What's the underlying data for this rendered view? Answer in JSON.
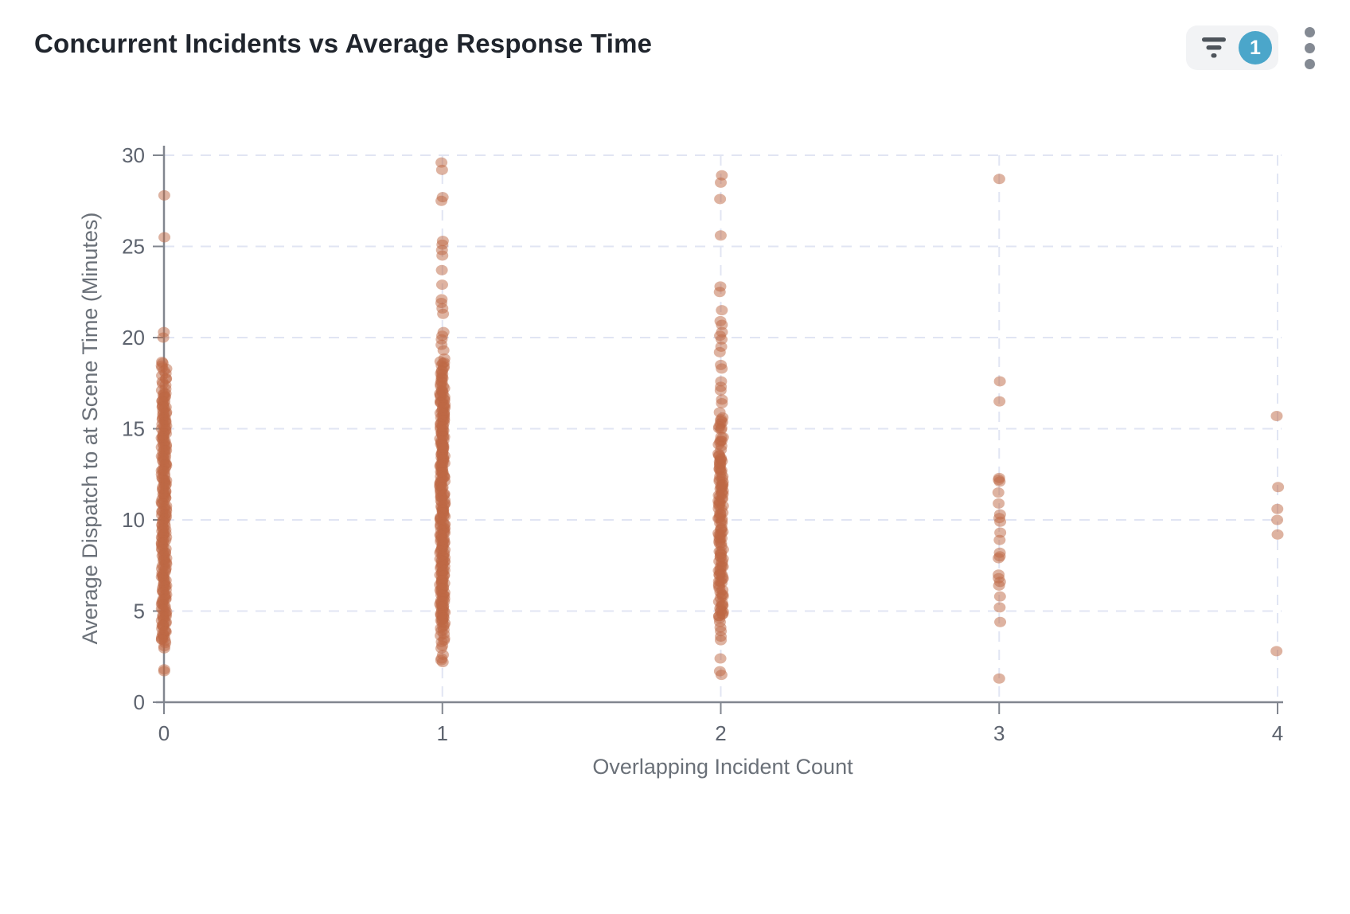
{
  "header": {
    "title": "Concurrent Incidents vs Average Response Time"
  },
  "toolbar": {
    "filter_badge_count": "1"
  },
  "colors": {
    "title_text": "#20252d",
    "pill_bg": "#f2f3f5",
    "funnel_icon": "#4e545b",
    "badge_bg": "#4ba6ca",
    "badge_text": "#ffffff",
    "kebab_dots": "#848a93",
    "point": "#be6744",
    "grid": "#e1e5f3",
    "axis": "#81868f",
    "tick_text": "#5d636e",
    "axis_title_text": "#6a7078"
  },
  "chart_data": {
    "type": "scatter",
    "title": "Concurrent Incidents vs Average Response Time",
    "xlabel": "Overlapping Incident Count",
    "ylabel": "Average Dispatch to at Scene Time (Minutes)",
    "xlim": [
      0,
      4
    ],
    "ylim": [
      0,
      30
    ],
    "x_ticks": [
      0,
      1,
      2,
      3,
      4
    ],
    "y_ticks": [
      0,
      5,
      10,
      15,
      20,
      25,
      30
    ],
    "grid": true,
    "legend": false,
    "point_style": {
      "color": "#be6744",
      "opacity": 0.5,
      "rx": 7.5,
      "ry": 6.5
    },
    "columns": [
      {
        "x": 0,
        "singles": [
          27.8,
          25.5,
          20.3,
          20.0,
          1.8,
          1.7
        ],
        "bands": [
          {
            "from": 18.7,
            "to": 17.0,
            "count": 16
          },
          {
            "from": 16.9,
            "to": 3.4,
            "count": 215
          },
          {
            "from": 3.3,
            "to": 3.0,
            "count": 4
          }
        ]
      },
      {
        "x": 1,
        "singles": [
          29.6,
          29.2,
          27.7,
          27.5,
          25.3,
          25.1,
          24.8,
          24.5,
          23.7,
          22.9,
          22.1,
          21.9,
          21.6,
          21.3,
          20.3,
          20.1,
          19.9,
          19.6,
          19.3,
          2.6,
          2.4,
          2.3,
          2.2
        ],
        "bands": [
          {
            "from": 18.8,
            "to": 17.2,
            "count": 20
          },
          {
            "from": 17.1,
            "to": 4.2,
            "count": 235
          },
          {
            "from": 4.1,
            "to": 3.0,
            "count": 10
          }
        ]
      },
      {
        "x": 2,
        "singles": [
          28.9,
          28.5,
          27.6,
          25.6,
          22.8,
          22.5,
          21.5,
          20.9,
          20.7,
          20.3,
          20.1,
          19.9,
          19.5,
          19.2,
          18.5,
          18.3,
          17.6,
          17.3,
          17.1,
          16.6,
          16.4,
          15.9,
          4.4,
          4.1,
          3.9,
          3.6,
          3.4,
          2.4,
          1.7,
          1.5
        ],
        "bands": [
          {
            "from": 15.6,
            "to": 14.9,
            "count": 9
          },
          {
            "from": 14.6,
            "to": 13.9,
            "count": 8
          },
          {
            "from": 13.6,
            "to": 12.6,
            "count": 16
          },
          {
            "from": 12.4,
            "to": 10.6,
            "count": 28
          },
          {
            "from": 10.4,
            "to": 9.8,
            "count": 10
          },
          {
            "from": 9.6,
            "to": 8.6,
            "count": 15
          },
          {
            "from": 8.4,
            "to": 7.6,
            "count": 11
          },
          {
            "from": 7.5,
            "to": 6.4,
            "count": 17
          },
          {
            "from": 6.2,
            "to": 5.7,
            "count": 7
          },
          {
            "from": 5.5,
            "to": 4.6,
            "count": 14
          }
        ]
      },
      {
        "x": 3,
        "singles": [
          28.7,
          17.6,
          16.5,
          12.3,
          12.2,
          12.1,
          11.5,
          10.9,
          10.3,
          10.1,
          9.9,
          9.3,
          8.9,
          8.2,
          8.0,
          7.9,
          7.0,
          6.8,
          6.6,
          6.4,
          5.8,
          5.2,
          4.4,
          1.3
        ],
        "bands": []
      },
      {
        "x": 4,
        "singles": [
          15.7,
          11.8,
          10.6,
          10.0,
          9.2,
          2.8
        ],
        "bands": []
      }
    ]
  }
}
